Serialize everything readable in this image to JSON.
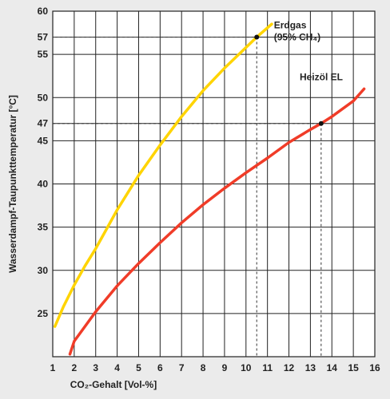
{
  "chart_data": {
    "type": "line",
    "xlabel": "CO₂-Gehalt [Vol-%]",
    "ylabel": "Wasserdampf-Taupunkttemperatur [°C]",
    "xlim": [
      1,
      16
    ],
    "ylim": [
      20,
      60
    ],
    "x_ticks": [
      1,
      2,
      3,
      4,
      5,
      6,
      7,
      8,
      9,
      10,
      11,
      12,
      13,
      14,
      15,
      16
    ],
    "y_ticks": [
      25,
      30,
      35,
      40,
      45,
      47,
      50,
      55,
      57,
      60
    ],
    "grid": true,
    "series": [
      {
        "name": "Erdgas (95% CH₄)",
        "label_line1": "Erdgas",
        "label_line2": "(95% CH₄)",
        "color": "#ffd400",
        "x": [
          1.1,
          1.5,
          2,
          2.5,
          3,
          4,
          5,
          6,
          7,
          8,
          9,
          10,
          10.5,
          11.2
        ],
        "y": [
          23.5,
          25.8,
          28.3,
          30.5,
          32.5,
          37.0,
          41.0,
          44.5,
          47.8,
          50.8,
          53.4,
          55.8,
          57.0,
          58.5
        ]
      },
      {
        "name": "Heizöl EL",
        "label_line1": "Heizöl EL",
        "color": "#f03c28",
        "x": [
          1.8,
          2,
          2.5,
          3,
          4,
          5,
          6,
          7,
          8,
          9,
          10,
          11,
          12,
          13,
          13.5,
          14,
          15,
          15.5
        ],
        "y": [
          20.3,
          21.8,
          23.5,
          25.2,
          28.2,
          30.8,
          33.2,
          35.5,
          37.6,
          39.5,
          41.3,
          43.0,
          44.8,
          46.3,
          47.0,
          47.8,
          49.6,
          51.0
        ]
      }
    ],
    "markers": [
      {
        "series": "Erdgas (95% CH₄)",
        "x": 10.5,
        "y": 57
      },
      {
        "series": "Heizöl EL",
        "x": 13.5,
        "y": 47
      }
    ]
  }
}
